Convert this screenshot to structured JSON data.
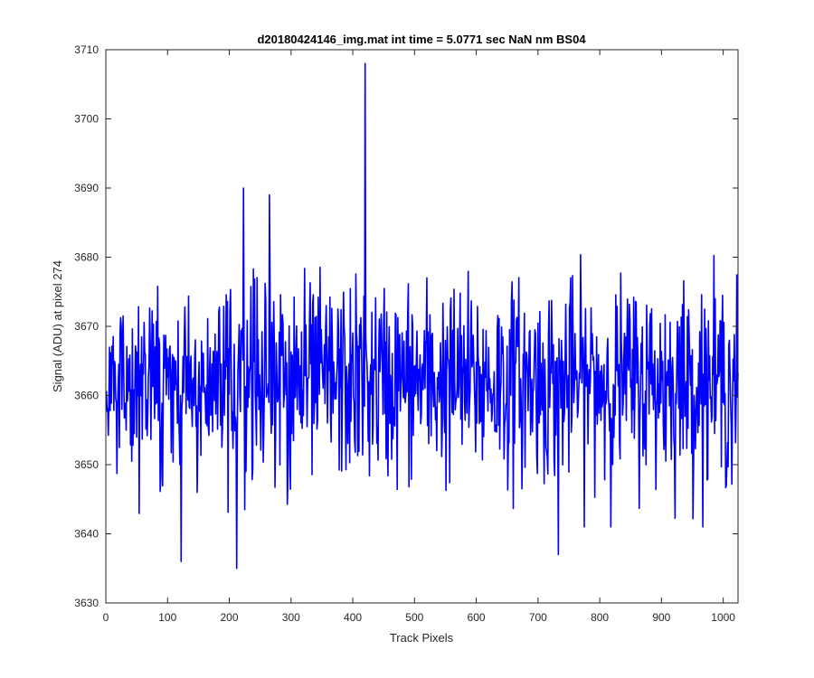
{
  "chart_data": {
    "type": "line",
    "title": "d20180424146_img.mat int time = 5.0771 sec  NaN nm BS04",
    "xlabel": "Track Pixels",
    "ylabel": "Signal (ADU) at pixel 274",
    "xlim": [
      0,
      1024
    ],
    "ylim": [
      3630,
      3710
    ],
    "xticks": [
      0,
      100,
      200,
      300,
      400,
      500,
      600,
      700,
      800,
      900,
      1000
    ],
    "yticks": [
      3630,
      3640,
      3650,
      3660,
      3670,
      3680,
      3690,
      3700,
      3710
    ],
    "grid": false,
    "series": [
      {
        "color": "#0000ff",
        "n_points": 1024,
        "x_start": 1,
        "baseline": 3662,
        "noise_std": 7,
        "notable_points": [
          {
            "x": 420,
            "y": 3708
          },
          {
            "x": 212,
            "y": 3635
          },
          {
            "x": 733,
            "y": 3637
          },
          {
            "x": 122,
            "y": 3636
          },
          {
            "x": 223,
            "y": 3690
          },
          {
            "x": 265,
            "y": 3689
          }
        ]
      }
    ]
  }
}
